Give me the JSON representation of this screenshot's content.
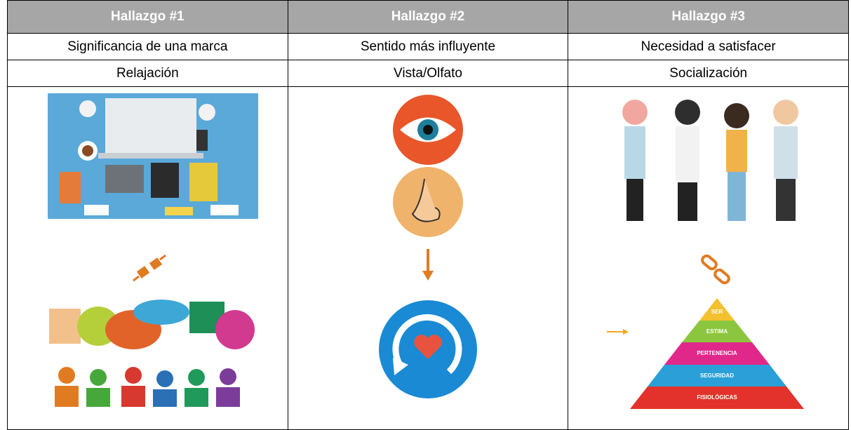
{
  "table": {
    "header": [
      "Hallazgo #1",
      "Hallazgo #2",
      "Hallazgo #3"
    ],
    "rows": [
      [
        "Significancia de una marca",
        "Sentido más influyente",
        "Necesidad a satisfacer"
      ],
      [
        "Relajación",
        "Vista/Olfato",
        "Socialización"
      ]
    ]
  },
  "pyramid": {
    "levels": [
      "SER",
      "ESTIMA",
      "PERTENENCIA",
      "SEGURIDAD",
      "FISIOLÓGICAS"
    ]
  }
}
